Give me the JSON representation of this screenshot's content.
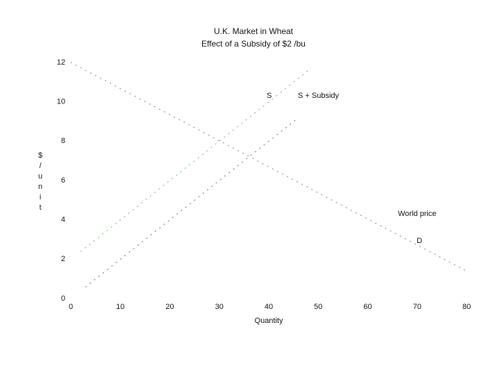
{
  "chart_data": {
    "type": "line",
    "title": "U.K. Market in Wheat",
    "subtitle": "Effect of a Subsidy of $2 /bu",
    "xlabel": "Quantity",
    "ylabel": "$/unit",
    "xlim": [
      0,
      80
    ],
    "xticks": [
      0,
      10,
      20,
      30,
      40,
      50,
      60,
      70,
      80
    ],
    "ylim": [
      0,
      12
    ],
    "yticks": [
      0,
      2,
      4,
      6,
      8,
      10,
      12
    ],
    "grid": false,
    "series": [
      {
        "name": "D",
        "color": "#9a9a9a",
        "x": [
          0,
          80
        ],
        "values": [
          12,
          1.4
        ]
      },
      {
        "name": "S",
        "color": "#8fbf8f",
        "x": [
          2,
          48
        ],
        "values": [
          2.4,
          11.6
        ]
      },
      {
        "name": "S + Subsidy",
        "color": "#7f8f7f",
        "x": [
          3,
          46
        ],
        "values": [
          0.6,
          9.2
        ]
      }
    ],
    "annotations": [
      "World price"
    ]
  }
}
